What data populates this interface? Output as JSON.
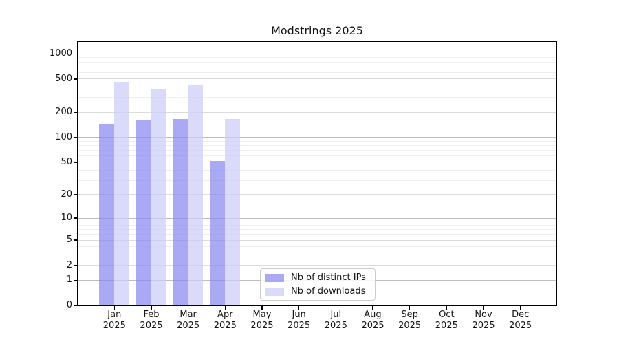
{
  "title": "Modstrings 2025",
  "legend": {
    "items": [
      {
        "label": "Nb of distinct IPs",
        "color": "#8888f0",
        "alpha": 0.72
      },
      {
        "label": "Nb of downloads",
        "color": "#ccccf8",
        "alpha": 0.72
      }
    ]
  },
  "chart_data": {
    "type": "bar",
    "title": "Modstrings 2025",
    "categories": [
      "Jan 2025",
      "Feb 2025",
      "Mar 2025",
      "Apr 2025",
      "May 2025",
      "Jun 2025",
      "Jul 2025",
      "Aug 2025",
      "Sep 2025",
      "Oct 2025",
      "Nov 2025",
      "Dec 2025"
    ],
    "series": [
      {
        "name": "Nb of distinct IPs",
        "color": "#8888f0",
        "alpha": 0.72,
        "values": [
          145,
          160,
          165,
          52,
          0,
          0,
          0,
          0,
          0,
          0,
          0,
          0
        ]
      },
      {
        "name": "Nb of downloads",
        "color": "#ccccf8",
        "alpha": 0.72,
        "values": [
          460,
          375,
          420,
          165,
          0,
          0,
          0,
          0,
          0,
          0,
          0,
          0
        ]
      }
    ],
    "xlabel": "",
    "ylabel": "",
    "yscale": "log1p",
    "ylim": [
      0,
      1385
    ],
    "yticks": [
      1000,
      500,
      200,
      100,
      50,
      20,
      10,
      5,
      2,
      1,
      0
    ],
    "grid": {
      "on": true,
      "major_lines": [
        1,
        10,
        100,
        1000
      ],
      "mid_lines": [
        2,
        5,
        20,
        50,
        200,
        500
      ],
      "minor_lines": [
        3,
        4,
        6,
        7,
        8,
        9,
        30,
        40,
        60,
        70,
        80,
        90,
        300,
        400,
        600,
        700,
        800,
        900
      ],
      "colors": {
        "major": "#bdbdbd",
        "mid": "#dcdcdc",
        "minor": "#efefef"
      }
    },
    "legend_position": "lower center-right inside plot",
    "grid_above_bars": false,
    "bars_semi_transparent": true
  }
}
